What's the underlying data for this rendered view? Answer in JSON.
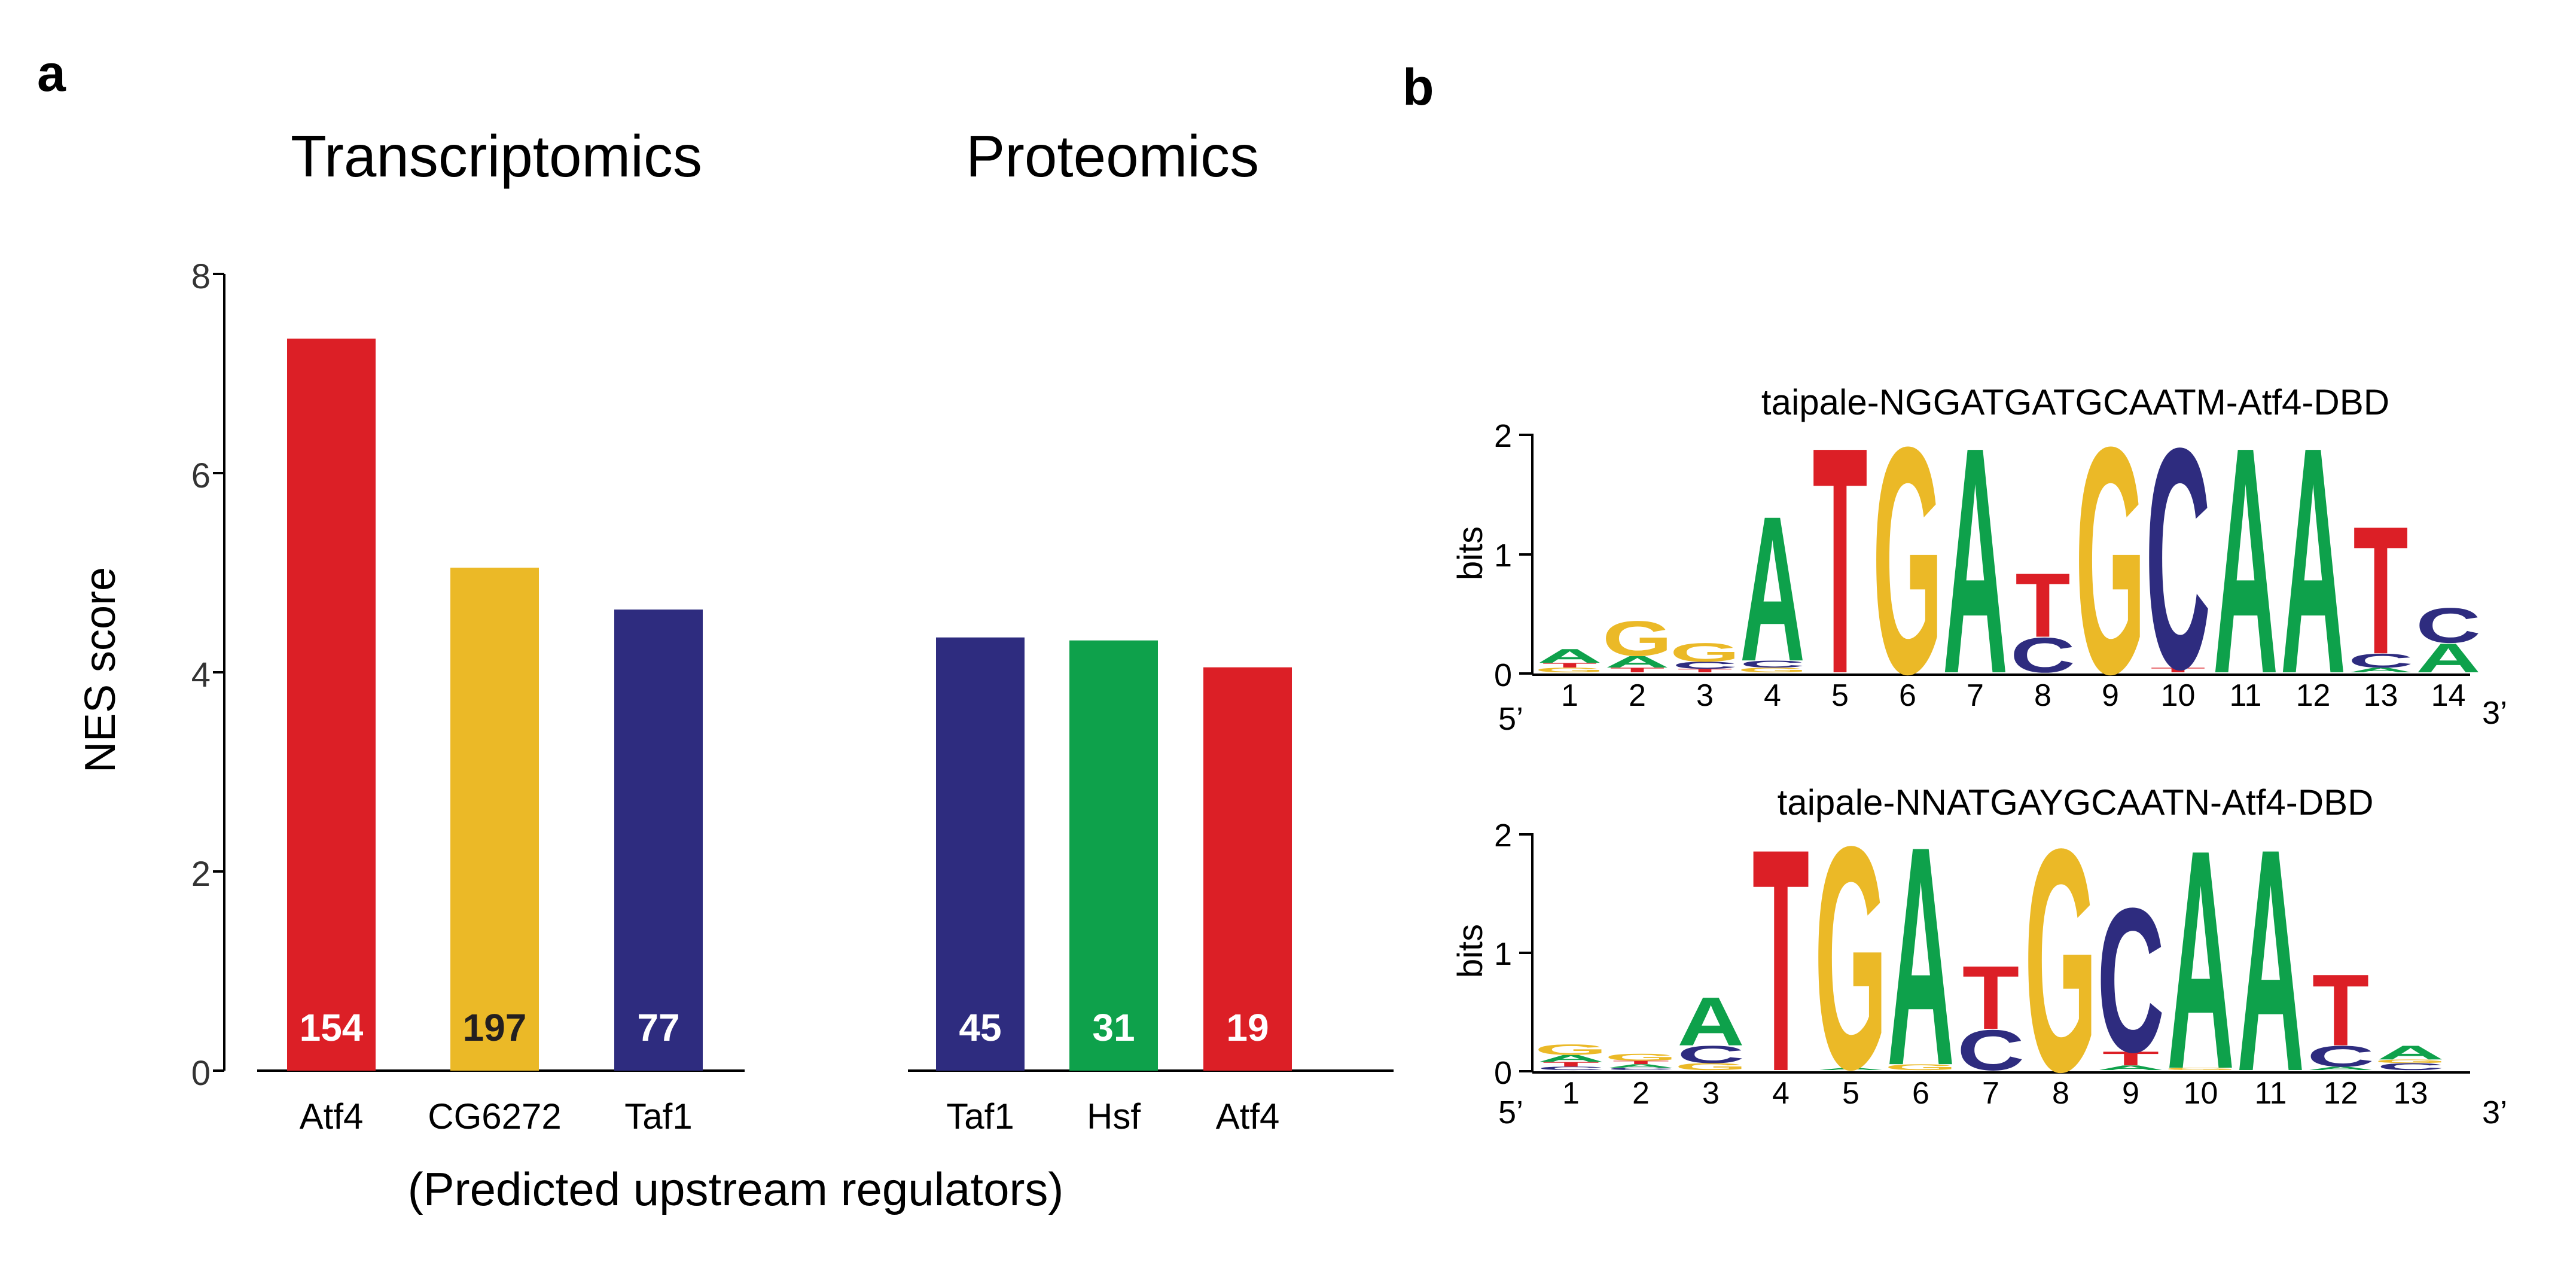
{
  "colors": {
    "red": "#DC1F26",
    "yellow": "#EBB927",
    "blue": "#2E2C7F",
    "green": "#0EA14B",
    "axis": "#000000"
  },
  "panel_a": {
    "label": "a",
    "ylabel": "NES score",
    "xlabel": "(Predicted upstream regulators)",
    "yticks": [
      "0",
      "2",
      "4",
      "6",
      "8"
    ]
  },
  "panel_b": {
    "label": "b",
    "logos": [
      {
        "title": "taipale-NGGATGATGCAATM-Atf4-DBD",
        "ylabel": "bits",
        "yticks": [
          "0",
          "1",
          "2"
        ],
        "end5": "5’",
        "end3": "3’",
        "positions": [
          "1",
          "2",
          "3",
          "4",
          "5",
          "6",
          "7",
          "8",
          "9",
          "10",
          "11",
          "12",
          "13",
          "14"
        ]
      },
      {
        "title": "taipale-NNATGAYGCAATN-Atf4-DBD",
        "ylabel": "bits",
        "yticks": [
          "0",
          "1",
          "2"
        ],
        "end5": "5’",
        "end3": "3’",
        "positions": [
          "1",
          "2",
          "3",
          "4",
          "5",
          "6",
          "7",
          "8",
          "9",
          "10",
          "11",
          "12",
          "13"
        ]
      }
    ]
  },
  "chart_data": [
    {
      "type": "bar",
      "title": "Transcriptomics",
      "categories": [
        "Atf4",
        "CG6272",
        "Taf1"
      ],
      "values": [
        7.35,
        5.05,
        4.63
      ],
      "counts": [
        "154",
        "197",
        "77"
      ],
      "bar_colors": [
        "#DC1F26",
        "#EBB927",
        "#2E2C7F"
      ],
      "count_colors": [
        "#ffffff",
        "#231f20",
        "#ffffff"
      ],
      "ylabel": "NES score",
      "xlabel": "(Predicted upstream regulators)",
      "ylim": [
        0,
        8
      ]
    },
    {
      "type": "bar",
      "title": "Proteomics",
      "categories": [
        "Taf1",
        "Hsf",
        "Atf4"
      ],
      "values": [
        4.35,
        4.32,
        4.05
      ],
      "counts": [
        "45",
        "31",
        "19"
      ],
      "bar_colors": [
        "#2E2C7F",
        "#0EA14B",
        "#DC1F26"
      ],
      "count_colors": [
        "#ffffff",
        "#ffffff",
        "#ffffff"
      ],
      "ylabel": "NES score",
      "xlabel": "(Predicted upstream regulators)",
      "ylim": [
        0,
        8
      ]
    },
    {
      "type": "sequence-logo",
      "title": "taipale-NGGATGATGCAATM-Atf4-DBD",
      "ylabel": "bits",
      "ylim": [
        0,
        2
      ],
      "positions": [
        [
          [
            "G",
            0.04
          ],
          [
            "T",
            0.04
          ],
          [
            "A",
            0.12
          ]
        ],
        [
          [
            "T",
            0.04
          ],
          [
            "A",
            0.1
          ],
          [
            "G",
            0.3
          ]
        ],
        [
          [
            "T",
            0.03
          ],
          [
            "C",
            0.06
          ],
          [
            "G",
            0.16
          ]
        ],
        [
          [
            "G",
            0.04
          ],
          [
            "C",
            0.06
          ],
          [
            "A",
            1.25
          ]
        ],
        [
          [
            "T",
            1.95
          ]
        ],
        [
          [
            "G",
            1.95
          ]
        ],
        [
          [
            "A",
            1.95
          ]
        ],
        [
          [
            "C",
            0.3
          ],
          [
            "T",
            0.55
          ]
        ],
        [
          [
            "G",
            1.95
          ]
        ],
        [
          [
            "T",
            0.04
          ],
          [
            "C",
            1.9
          ]
        ],
        [
          [
            "A",
            1.95
          ]
        ],
        [
          [
            "A",
            1.95
          ]
        ],
        [
          [
            "A",
            0.04
          ],
          [
            "C",
            0.12
          ],
          [
            "T",
            1.1
          ]
        ],
        [
          [
            "A",
            0.25
          ],
          [
            "C",
            0.3
          ]
        ]
      ]
    },
    {
      "type": "sequence-logo",
      "title": "taipale-NNATGAYGCAATN-Atf4-DBD",
      "ylabel": "bits",
      "ylim": [
        0,
        2
      ],
      "positions": [
        [
          [
            "C",
            0.03
          ],
          [
            "T",
            0.04
          ],
          [
            "A",
            0.06
          ],
          [
            "G",
            0.09
          ]
        ],
        [
          [
            "C",
            0.02
          ],
          [
            "A",
            0.03
          ],
          [
            "T",
            0.03
          ],
          [
            "G",
            0.06
          ]
        ],
        [
          [
            "G",
            0.06
          ],
          [
            "C",
            0.15
          ],
          [
            "A",
            0.42
          ]
        ],
        [
          [
            "T",
            1.93
          ]
        ],
        [
          [
            "A",
            0.02
          ],
          [
            "G",
            1.93
          ]
        ],
        [
          [
            "G",
            0.05
          ],
          [
            "A",
            1.9
          ]
        ],
        [
          [
            "C",
            0.35
          ],
          [
            "T",
            0.55
          ]
        ],
        [
          [
            "G",
            1.93
          ]
        ],
        [
          [
            "A",
            0.04
          ],
          [
            "T",
            0.12
          ],
          [
            "C",
            1.25
          ]
        ],
        [
          [
            "G",
            0.02
          ],
          [
            "A",
            1.9
          ]
        ],
        [
          [
            "A",
            1.93
          ]
        ],
        [
          [
            "A",
            0.03
          ],
          [
            "C",
            0.18
          ],
          [
            "T",
            0.62
          ]
        ],
        [
          [
            "C",
            0.06
          ],
          [
            "G",
            0.03
          ],
          [
            "A",
            0.12
          ]
        ]
      ]
    }
  ]
}
